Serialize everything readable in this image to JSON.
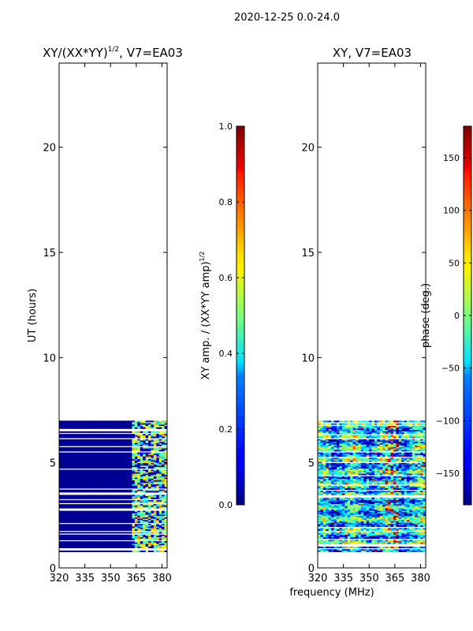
{
  "figure": {
    "suptitle": "2020-12-25 0.0-24.0",
    "shared_xlabel": "frequency (MHz)"
  },
  "chart_data": [
    {
      "type": "heatmap",
      "title_main": "XY/(XX*YY)",
      "title_sup": "1/2",
      "title_tail": ", V7=EA03",
      "ylabel": "UT (hours)",
      "xlim": [
        320,
        383
      ],
      "ylim": [
        0,
        24
      ],
      "xticks": [
        "320",
        "335",
        "350",
        "365",
        "380"
      ],
      "xtick_values": [
        320,
        335,
        350,
        365,
        380
      ],
      "yticks": [
        "0",
        "5",
        "10",
        "15",
        "20"
      ],
      "ytick_values": [
        0,
        5,
        10,
        15,
        20
      ],
      "data_range_hours": [
        0.7,
        7.0
      ],
      "colorbar": {
        "label_main": "XY amp. / (XX*YY amp)",
        "label_sup": "1/2",
        "range": [
          0.0,
          1.0
        ],
        "ticks": [
          "0.0",
          "0.2",
          "0.4",
          "0.6",
          "0.8",
          "1.0"
        ],
        "tick_values": [
          0.0,
          0.2,
          0.4,
          0.6,
          0.8,
          1.0
        ]
      }
    },
    {
      "type": "heatmap",
      "title": "XY, V7=EA03",
      "xlim": [
        320,
        383
      ],
      "ylim": [
        0,
        24
      ],
      "xticks": [
        "320",
        "335",
        "350",
        "365",
        "380"
      ],
      "xtick_values": [
        320,
        335,
        350,
        365,
        380
      ],
      "yticks": [
        "0",
        "5",
        "10",
        "15",
        "20"
      ],
      "ytick_values": [
        0,
        5,
        10,
        15,
        20
      ],
      "data_range_hours": [
        0.7,
        7.0
      ],
      "colorbar": {
        "label": "phase (deg.)",
        "range": [
          -180,
          180
        ],
        "ticks": [
          "−150",
          "−100",
          "−50",
          "0",
          "50",
          "100",
          "150"
        ],
        "tick_values": [
          -150,
          -100,
          -50,
          0,
          50,
          100,
          150
        ]
      }
    }
  ]
}
